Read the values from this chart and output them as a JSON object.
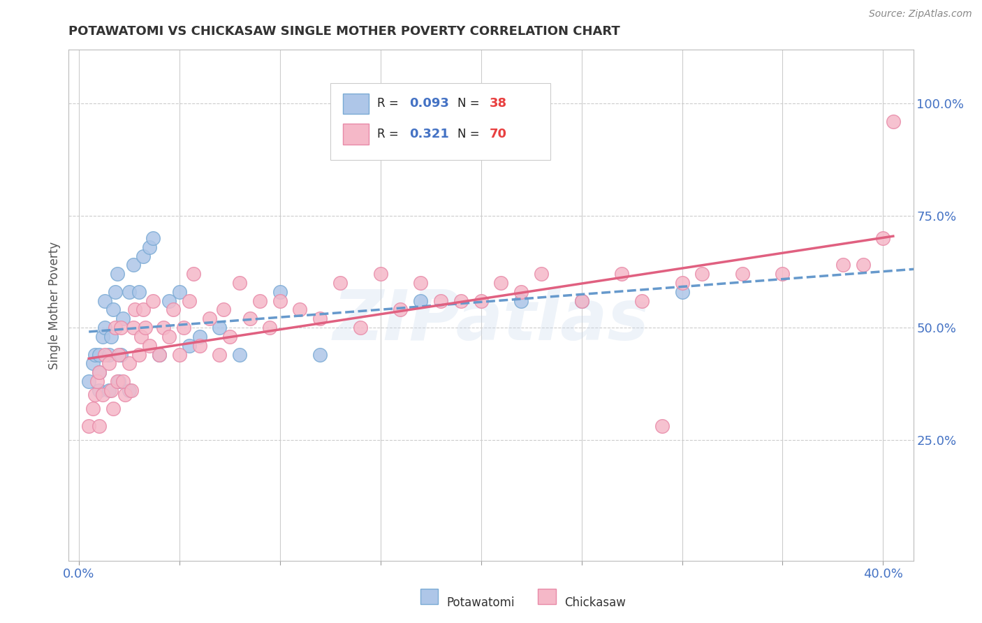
{
  "title": "POTAWATOMI VS CHICKASAW SINGLE MOTHER POVERTY CORRELATION CHART",
  "source": "Source: ZipAtlas.com",
  "ylabel": "Single Mother Poverty",
  "xlim": [
    -0.005,
    0.415
  ],
  "ylim": [
    -0.02,
    1.12
  ],
  "xtick_positions": [
    0.0,
    0.05,
    0.1,
    0.15,
    0.2,
    0.25,
    0.3,
    0.35,
    0.4
  ],
  "xticklabels_show": {
    "0": "0.0%",
    "8": "40.0%"
  },
  "yticks_right": [
    0.25,
    0.5,
    0.75,
    1.0
  ],
  "ytick_right_labels": [
    "25.0%",
    "50.0%",
    "75.0%",
    "100.0%"
  ],
  "potawatomi_R": 0.093,
  "potawatomi_N": 38,
  "chickasaw_R": 0.321,
  "chickasaw_N": 70,
  "color_potawatomi_fill": "#aec6e8",
  "color_potawatomi_edge": "#7aaad4",
  "color_chickasaw_fill": "#f5b8c8",
  "color_chickasaw_edge": "#e88aa8",
  "color_line_potawatomi": "#6699cc",
  "color_line_chickasaw": "#e06080",
  "color_text_blue": "#4472c4",
  "color_text_red": "#e84040",
  "watermark_text": "ZIPatlas",
  "grid_color": "#cccccc",
  "potawatomi_x": [
    0.005,
    0.007,
    0.008,
    0.01,
    0.01,
    0.01,
    0.012,
    0.013,
    0.013,
    0.015,
    0.015,
    0.016,
    0.017,
    0.018,
    0.019,
    0.02,
    0.021,
    0.022,
    0.025,
    0.025,
    0.027,
    0.03,
    0.032,
    0.035,
    0.037,
    0.04,
    0.045,
    0.05,
    0.055,
    0.06,
    0.07,
    0.08,
    0.1,
    0.12,
    0.17,
    0.22,
    0.25,
    0.3
  ],
  "potawatomi_y": [
    0.38,
    0.42,
    0.44,
    0.36,
    0.4,
    0.44,
    0.48,
    0.5,
    0.56,
    0.36,
    0.44,
    0.48,
    0.54,
    0.58,
    0.62,
    0.38,
    0.44,
    0.52,
    0.36,
    0.58,
    0.64,
    0.58,
    0.66,
    0.68,
    0.7,
    0.44,
    0.56,
    0.58,
    0.46,
    0.48,
    0.5,
    0.44,
    0.58,
    0.44,
    0.56,
    0.56,
    0.56,
    0.58
  ],
  "chickasaw_x": [
    0.005,
    0.007,
    0.008,
    0.009,
    0.01,
    0.01,
    0.012,
    0.013,
    0.015,
    0.016,
    0.017,
    0.018,
    0.019,
    0.02,
    0.021,
    0.022,
    0.023,
    0.025,
    0.026,
    0.027,
    0.028,
    0.03,
    0.031,
    0.032,
    0.033,
    0.035,
    0.037,
    0.04,
    0.042,
    0.045,
    0.047,
    0.05,
    0.052,
    0.055,
    0.057,
    0.06,
    0.065,
    0.07,
    0.072,
    0.075,
    0.08,
    0.085,
    0.09,
    0.095,
    0.1,
    0.11,
    0.12,
    0.13,
    0.14,
    0.15,
    0.16,
    0.17,
    0.18,
    0.19,
    0.2,
    0.21,
    0.22,
    0.23,
    0.25,
    0.27,
    0.28,
    0.29,
    0.3,
    0.31,
    0.33,
    0.35,
    0.38,
    0.39,
    0.4,
    0.405
  ],
  "chickasaw_y": [
    0.28,
    0.32,
    0.35,
    0.38,
    0.28,
    0.4,
    0.35,
    0.44,
    0.42,
    0.36,
    0.32,
    0.5,
    0.38,
    0.44,
    0.5,
    0.38,
    0.35,
    0.42,
    0.36,
    0.5,
    0.54,
    0.44,
    0.48,
    0.54,
    0.5,
    0.46,
    0.56,
    0.44,
    0.5,
    0.48,
    0.54,
    0.44,
    0.5,
    0.56,
    0.62,
    0.46,
    0.52,
    0.44,
    0.54,
    0.48,
    0.6,
    0.52,
    0.56,
    0.5,
    0.56,
    0.54,
    0.52,
    0.6,
    0.5,
    0.62,
    0.54,
    0.6,
    0.56,
    0.56,
    0.56,
    0.6,
    0.58,
    0.62,
    0.56,
    0.62,
    0.56,
    0.28,
    0.6,
    0.62,
    0.62,
    0.62,
    0.64,
    0.64,
    0.7,
    0.96
  ]
}
